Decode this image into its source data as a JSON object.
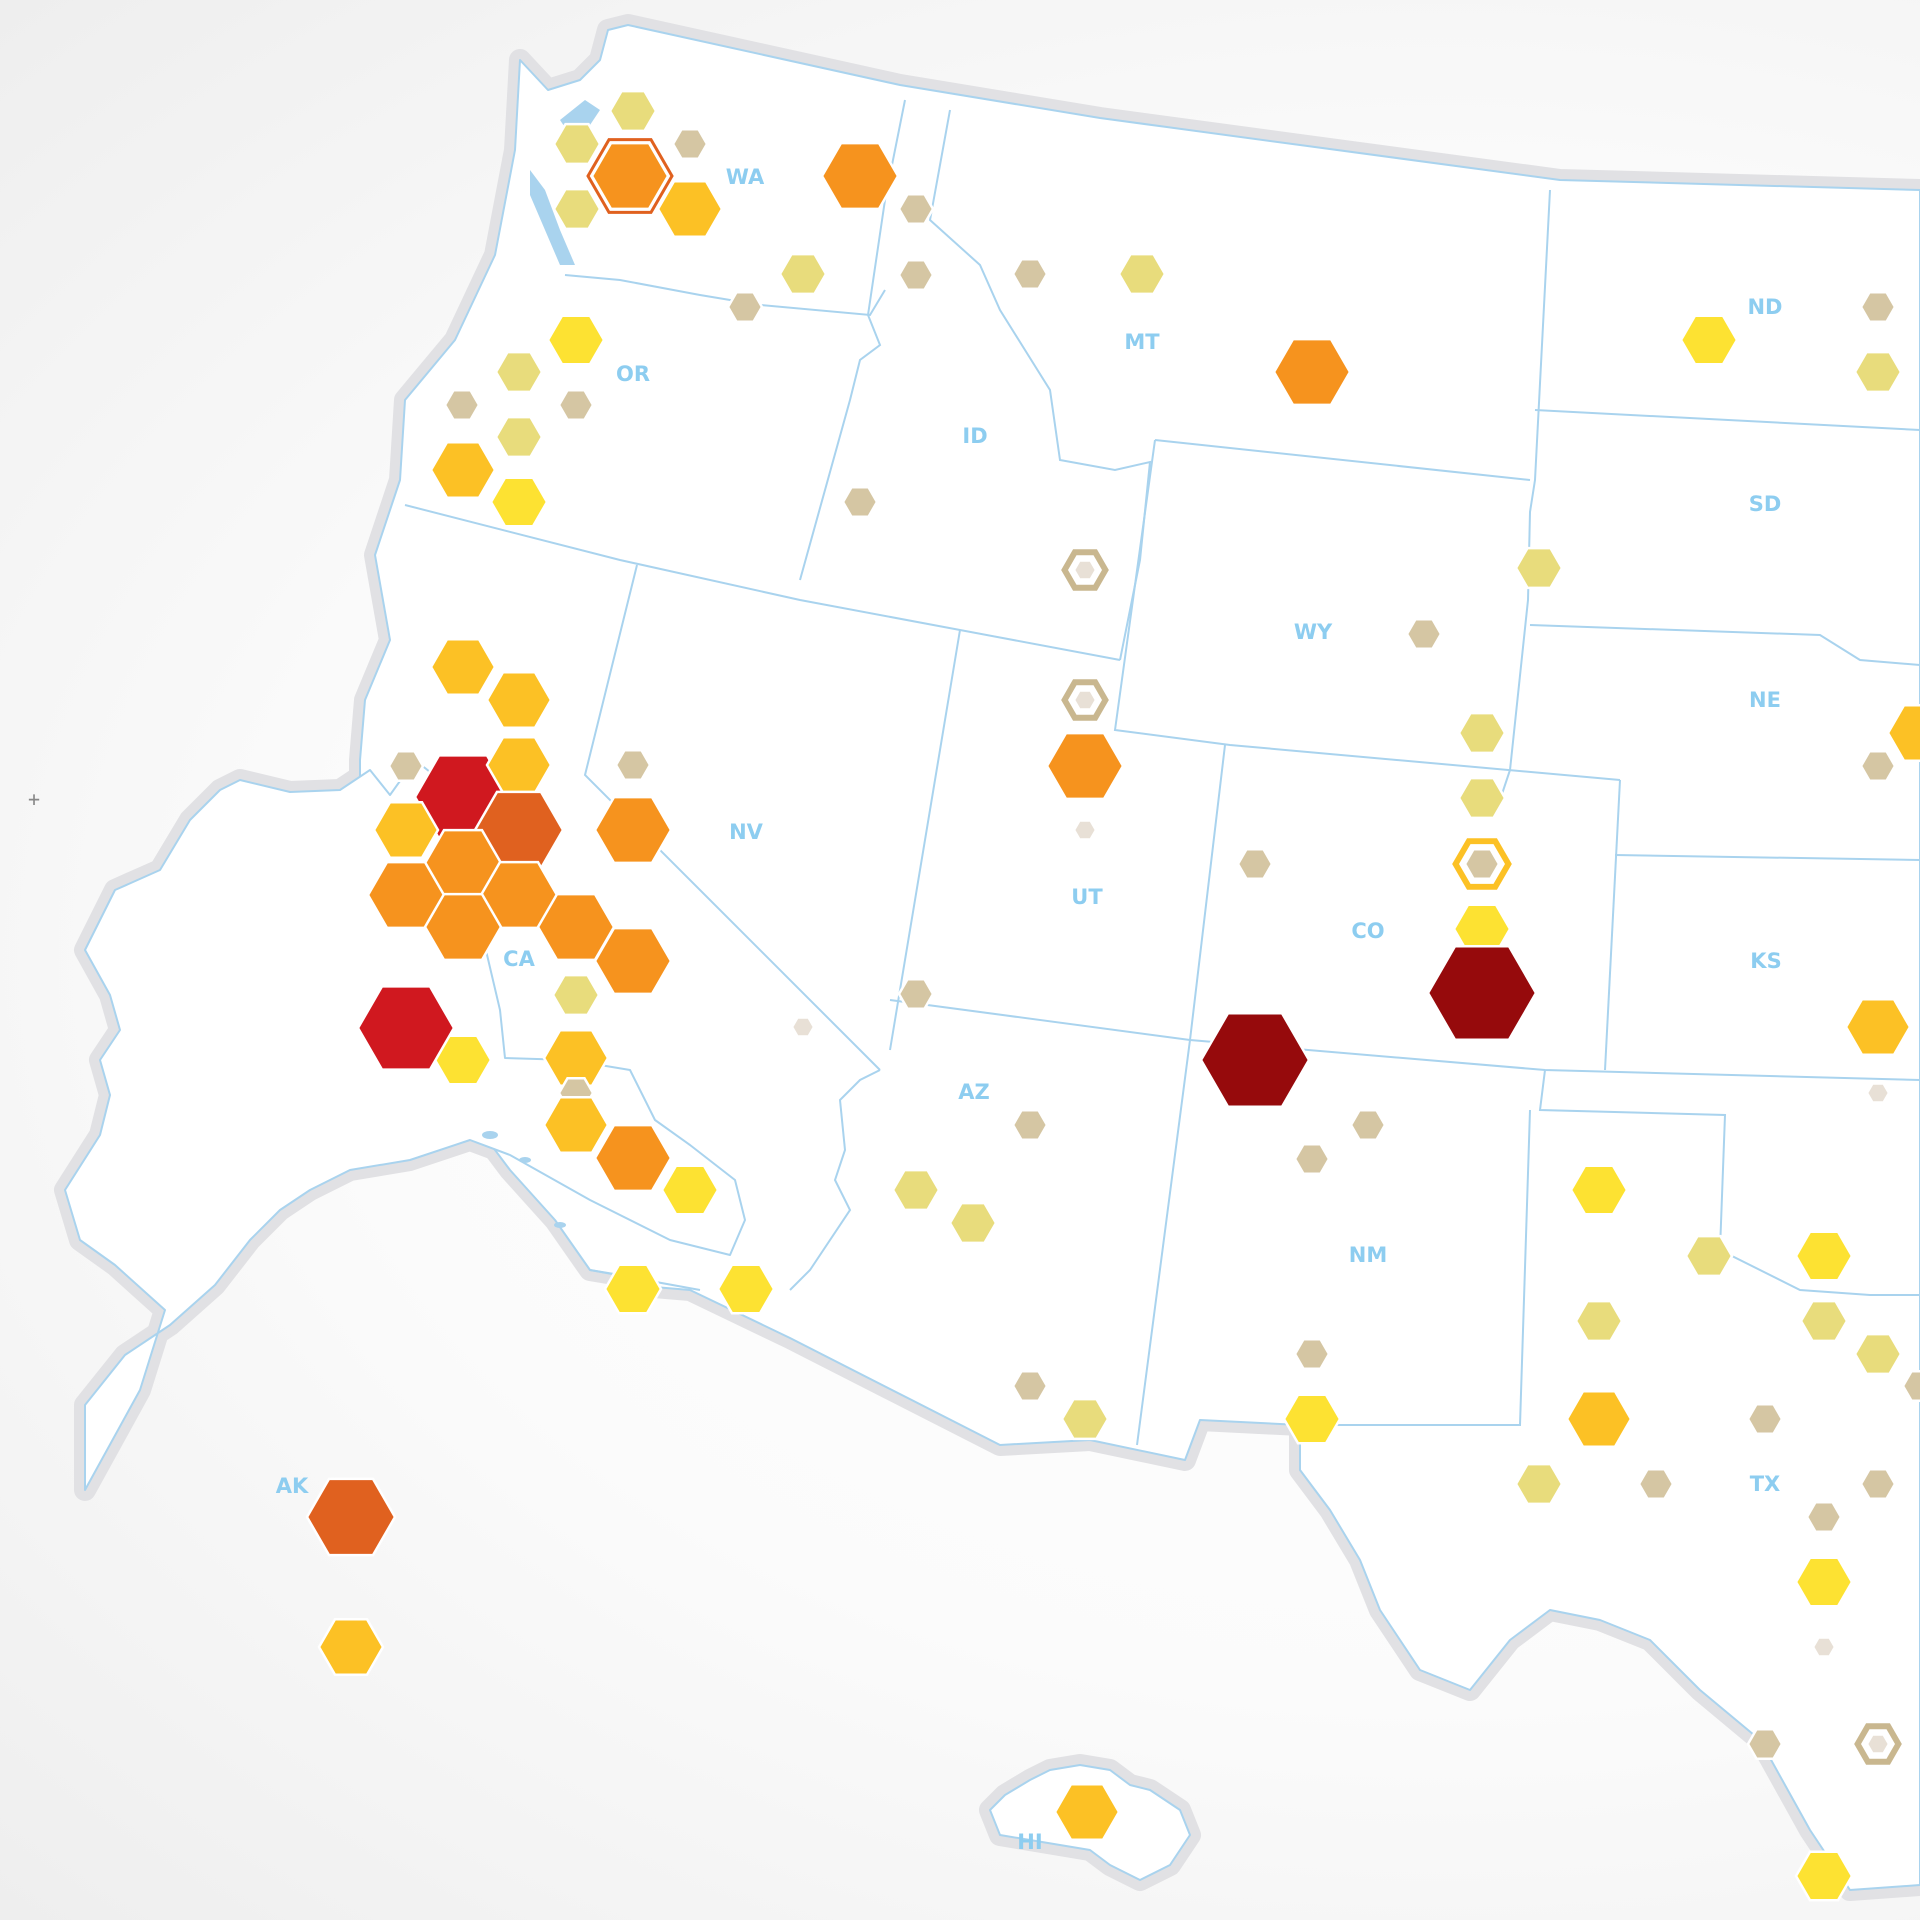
{
  "map": {
    "state_labels": [
      {
        "id": "WA",
        "text": "WA"
      },
      {
        "id": "OR",
        "text": "OR"
      },
      {
        "id": "CA",
        "text": "CA"
      },
      {
        "id": "NV",
        "text": "NV"
      },
      {
        "id": "ID",
        "text": "ID"
      },
      {
        "id": "MT",
        "text": "MT"
      },
      {
        "id": "WY",
        "text": "WY"
      },
      {
        "id": "UT",
        "text": "UT"
      },
      {
        "id": "CO",
        "text": "CO"
      },
      {
        "id": "AZ",
        "text": "AZ"
      },
      {
        "id": "NM",
        "text": "NM"
      },
      {
        "id": "ND",
        "text": "ND"
      },
      {
        "id": "SD",
        "text": "SD"
      },
      {
        "id": "NE",
        "text": "NE"
      },
      {
        "id": "KS",
        "text": "KS"
      },
      {
        "id": "TX",
        "text": "TX"
      },
      {
        "id": "AK",
        "text": "AK"
      },
      {
        "id": "HI",
        "text": "HI"
      }
    ],
    "crosshair_symbol": "+",
    "marker_levels": {
      "1": {
        "color": "#e8e0d6",
        "label": "level-1"
      },
      "2": {
        "color": "#d5c6a3",
        "label": "level-2"
      },
      "3": {
        "color": "#e8dc7c",
        "label": "level-3"
      },
      "4": {
        "color": "#fde232",
        "label": "level-4"
      },
      "5": {
        "color": "#fcc125",
        "label": "level-5"
      },
      "6": {
        "color": "#f6931e",
        "label": "level-6"
      },
      "7": {
        "color": "#e0611f",
        "label": "level-7"
      },
      "8": {
        "color": "#d0181f",
        "label": "level-8"
      },
      "9": {
        "color": "#960a0c",
        "label": "level-9"
      }
    },
    "markers": [
      {
        "state": "WA",
        "level": 3
      },
      {
        "state": "WA",
        "level": 3
      },
      {
        "state": "WA",
        "level": 2
      },
      {
        "state": "WA",
        "level": 6,
        "highlight": true
      },
      {
        "state": "WA",
        "level": 3
      },
      {
        "state": "WA",
        "level": 5
      },
      {
        "state": "WA",
        "level": 6
      },
      {
        "state": "WA",
        "level": 2
      },
      {
        "state": "WA",
        "level": 3
      },
      {
        "state": "OR",
        "level": 4
      },
      {
        "state": "OR",
        "level": 3
      },
      {
        "state": "OR",
        "level": 2
      },
      {
        "state": "OR",
        "level": 2
      },
      {
        "state": "OR",
        "level": 3
      },
      {
        "state": "OR",
        "level": 5
      },
      {
        "state": "OR",
        "level": 4
      },
      {
        "state": "OR",
        "level": 2
      },
      {
        "state": "ID",
        "level": 2
      },
      {
        "state": "ID",
        "level": 2
      },
      {
        "state": "ID",
        "level": 1,
        "ring": "#c9b78f"
      },
      {
        "state": "MT",
        "level": 2
      },
      {
        "state": "MT",
        "level": 3
      },
      {
        "state": "MT",
        "level": 6
      },
      {
        "state": "ND",
        "level": 4
      },
      {
        "state": "ND",
        "level": 2
      },
      {
        "state": "ND",
        "level": 3
      },
      {
        "state": "SD",
        "level": 3
      },
      {
        "state": "WY",
        "level": 2
      },
      {
        "state": "WY",
        "level": 3
      },
      {
        "state": "WY",
        "level": 3
      },
      {
        "state": "CO",
        "level": 2,
        "ring": "#fcc125"
      },
      {
        "state": "CO",
        "level": 4
      },
      {
        "state": "CO",
        "level": 2
      },
      {
        "state": "CO",
        "level": 9
      },
      {
        "state": "NE",
        "level": 2
      },
      {
        "state": "NE",
        "level": 5
      },
      {
        "state": "KS",
        "level": 5
      },
      {
        "state": "KS",
        "level": 1
      },
      {
        "state": "UT",
        "level": 1,
        "ring": "#c9b78f"
      },
      {
        "state": "UT",
        "level": 6
      },
      {
        "state": "UT",
        "level": 1
      },
      {
        "state": "UT",
        "level": 2
      },
      {
        "state": "CA",
        "level": 5
      },
      {
        "state": "CA",
        "level": 5
      },
      {
        "state": "CA",
        "level": 2
      },
      {
        "state": "CA",
        "level": 8
      },
      {
        "state": "CA",
        "level": 5
      },
      {
        "state": "CA",
        "level": 5
      },
      {
        "state": "CA",
        "level": 7
      },
      {
        "state": "CA",
        "level": 6
      },
      {
        "state": "CA",
        "level": 6
      },
      {
        "state": "CA",
        "level": 6
      },
      {
        "state": "CA",
        "level": 6
      },
      {
        "state": "CA",
        "level": 6
      },
      {
        "state": "CA",
        "level": 6
      },
      {
        "state": "CA",
        "level": 5
      },
      {
        "state": "CA",
        "level": 4
      },
      {
        "state": "CA",
        "level": 3
      },
      {
        "state": "CA",
        "level": 8
      },
      {
        "state": "CA",
        "level": 2
      },
      {
        "state": "CA",
        "level": 5
      },
      {
        "state": "CA",
        "level": 6
      },
      {
        "state": "CA",
        "level": 4
      },
      {
        "state": "CA",
        "level": 4
      },
      {
        "state": "NV",
        "level": 4
      },
      {
        "state": "NV",
        "level": 2
      },
      {
        "state": "NV",
        "level": 6
      },
      {
        "state": "AZ",
        "level": 1
      },
      {
        "state": "AZ",
        "level": 2
      },
      {
        "state": "AZ",
        "level": 3
      },
      {
        "state": "AZ",
        "level": 3
      },
      {
        "state": "AZ",
        "level": 2
      },
      {
        "state": "NM",
        "level": 3
      },
      {
        "state": "NM",
        "level": 9
      },
      {
        "state": "NM",
        "level": 2
      },
      {
        "state": "NM",
        "level": 2
      },
      {
        "state": "NM",
        "level": 2
      },
      {
        "state": "TX",
        "level": 4
      },
      {
        "state": "TX",
        "level": 4
      },
      {
        "state": "TX",
        "level": 3
      },
      {
        "state": "TX",
        "level": 4
      },
      {
        "state": "TX",
        "level": 3
      },
      {
        "state": "TX",
        "level": 3
      },
      {
        "state": "TX",
        "level": 3
      },
      {
        "state": "TX",
        "level": 2
      },
      {
        "state": "TX",
        "level": 2
      },
      {
        "state": "TX",
        "level": 5
      },
      {
        "state": "TX",
        "level": 3
      },
      {
        "state": "TX",
        "level": 2
      },
      {
        "state": "TX",
        "level": 2
      },
      {
        "state": "TX",
        "level": 2
      },
      {
        "state": "TX",
        "level": 4
      },
      {
        "state": "TX",
        "level": 1
      },
      {
        "state": "TX",
        "level": 2
      },
      {
        "state": "TX",
        "level": 1,
        "ring": "#c9b78f"
      },
      {
        "state": "AK",
        "level": 4
      },
      {
        "state": "AK",
        "level": 7
      },
      {
        "state": "HI",
        "level": 5
      },
      {
        "state": "HI",
        "level": 5
      }
    ]
  }
}
